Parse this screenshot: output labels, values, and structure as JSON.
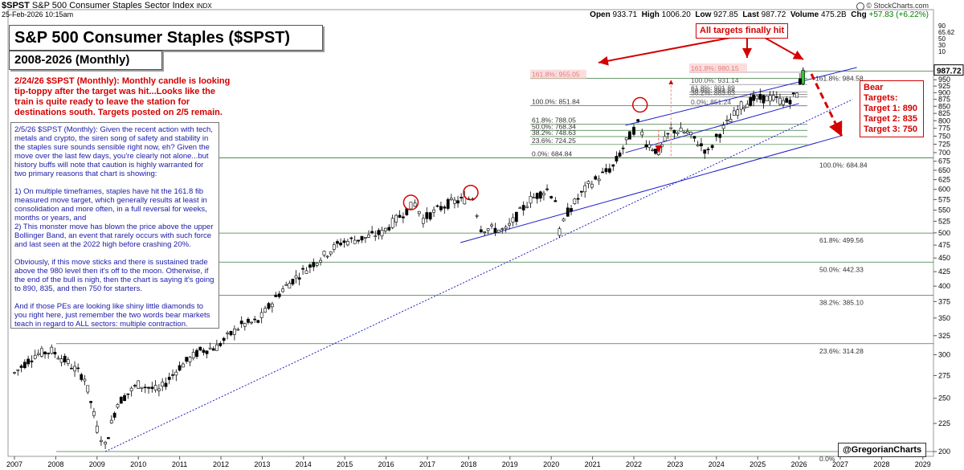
{
  "header": {
    "symbol": "$SPST",
    "name": "S&P 500 Consumer Staples Sector Index",
    "exchange": "INDX",
    "datetime": "25-Feb-2026 10:15am",
    "brand": "© StockCharts.com",
    "open_label": "Open",
    "open": "933.71",
    "high_label": "High",
    "high": "1006.20",
    "low_label": "Low",
    "low": "927.85",
    "last_label": "Last",
    "last": "987.72",
    "volume_label": "Volume",
    "volume": "475.2B",
    "chg_label": "Chg",
    "chg": "+57.83 (+6.22%)",
    "chg_color": "#008000"
  },
  "title": "S&P 500 Consumer Staples ($SPST)",
  "subtitle": "2008-2026 (Monthly)",
  "annotation_red": "2/24/26 $SPST (Monthly): Monthly candle is looking tip-toppy after the target was hit...Looks like the train is quite ready to leave the station for destinations south. Targets posted on 2/5 remain.",
  "annotation_blue": [
    "2/5/26 $SPST (Monthly): Given the recent action with tech, metals and crypto, the siren song of safety and stability in the staples sure sounds sensible right now, eh? Given the move over the last few days, you're clearly not alone...but history buffs will note that caution is highly warranted for two primary reasons that chart is showing:",
    "1) On multiple timeframes, staples have hit the 161.8 fib measured move target, which generally results at least in consolidation and more often, in a full reversal for weeks, months or years, and\n2) This monster move has blown the price above the upper Bollinger Band, an event that rarely occurs with such force and last seen at the 2022 high before crashing 20%.",
    "Obviously, if this move sticks and there is sustained trade above the 980 level then it's off to the moon. Otherwise, if the end of the bull is nigh, then the chart is saying it's going to 890, 835, and then 750 for starters.",
    "And if those PEs are looking like shiny little diamonds to you right here, just remember the two words bear markets teach in regard to ALL sectors: multiple contraction."
  ],
  "targets_hit_label": "All targets finally hit",
  "bear_targets": {
    "title": "Bear Targets:",
    "t1": "Target 1: 890",
    "t2": "Target 2: 835",
    "t3": "Target 3: 750"
  },
  "watermark": "@GregorianCharts",
  "colors": {
    "red": "#d40000",
    "blue": "#1e1ec8",
    "fib": "#3a7a3a",
    "candle": "#000000",
    "last_badge": "#ffffff"
  },
  "chart_data": {
    "type": "candlestick",
    "x_ticks": [
      "2007",
      "2008",
      "2009",
      "2010",
      "2011",
      "2012",
      "2013",
      "2014",
      "2015",
      "2016",
      "2017",
      "2018",
      "2019",
      "2020",
      "2021",
      "2022",
      "2023",
      "2024",
      "2025",
      "2026",
      "2027",
      "2028",
      "2029"
    ],
    "y_ticks": [
      200,
      225,
      250,
      275,
      300,
      325,
      350,
      375,
      400,
      425,
      450,
      475,
      500,
      525,
      550,
      575,
      600,
      625,
      650,
      675,
      700,
      725,
      750,
      775,
      800,
      825,
      850,
      875,
      900,
      925,
      950
    ],
    "y_scale": "log",
    "ylim": [
      200,
      1000
    ],
    "last_value_label": "987.72",
    "indicator_ticks": [
      "90",
      "65.62",
      "50",
      "30",
      "10"
    ],
    "price_path": [
      [
        2007.0,
        278
      ],
      [
        2007.5,
        300
      ],
      [
        2007.9,
        305
      ],
      [
        2008.3,
        290
      ],
      [
        2008.7,
        272
      ],
      [
        2009.0,
        220
      ],
      [
        2009.2,
        205
      ],
      [
        2009.5,
        245
      ],
      [
        2010.0,
        265
      ],
      [
        2010.5,
        258
      ],
      [
        2011.0,
        285
      ],
      [
        2011.5,
        305
      ],
      [
        2011.9,
        310
      ],
      [
        2012.5,
        340
      ],
      [
        2012.9,
        345
      ],
      [
        2013.5,
        395
      ],
      [
        2013.9,
        420
      ],
      [
        2014.5,
        455
      ],
      [
        2014.9,
        480
      ],
      [
        2015.5,
        490
      ],
      [
        2015.9,
        500
      ],
      [
        2016.5,
        550
      ],
      [
        2016.7,
        565
      ],
      [
        2016.9,
        530
      ],
      [
        2017.5,
        565
      ],
      [
        2017.9,
        575
      ],
      [
        2018.1,
        580
      ],
      [
        2018.3,
        510
      ],
      [
        2018.9,
        505
      ],
      [
        2019.5,
        575
      ],
      [
        2019.9,
        600
      ],
      [
        2020.1,
        575
      ],
      [
        2020.2,
        500
      ],
      [
        2020.4,
        545
      ],
      [
        2020.9,
        610
      ],
      [
        2021.5,
        660
      ],
      [
        2021.9,
        750
      ],
      [
        2022.1,
        790
      ],
      [
        2022.3,
        730
      ],
      [
        2022.6,
        700
      ],
      [
        2022.9,
        770
      ],
      [
        2023.3,
        760
      ],
      [
        2023.8,
        700
      ],
      [
        2024.0,
        745
      ],
      [
        2024.6,
        850
      ],
      [
        2024.9,
        875
      ],
      [
        2025.3,
        880
      ],
      [
        2025.7,
        865
      ],
      [
        2025.95,
        895
      ],
      [
        2026.1,
        988
      ]
    ],
    "fib_levels_long": [
      {
        "label": "100.0%: 684.84",
        "value": 684.84
      },
      {
        "label": "61.8%: 499.56",
        "value": 499.56
      },
      {
        "label": "50.0%: 442.33",
        "value": 442.33
      },
      {
        "label": "38.2%: 385.10",
        "value": 385.1
      },
      {
        "label": "23.6%: 314.28",
        "value": 314.28
      },
      {
        "label": "161.8%: 984.58",
        "value": 984.58
      },
      {
        "label": "0.0%",
        "value": 200
      }
    ],
    "fib_levels_2022": [
      {
        "label": "161.8%: 955.05",
        "value": 955.05
      },
      {
        "label": "100.0%: 851.84",
        "value": 851.84
      },
      {
        "label": "61.8%: 788.05",
        "value": 788.05
      },
      {
        "label": "50.0%: 768.34",
        "value": 768.34
      },
      {
        "label": "38.2%: 748.63",
        "value": 748.63
      },
      {
        "label": "23.6%: 724.25",
        "value": 724.25
      },
      {
        "label": "0.0%: 684.84",
        "value": 684.84
      }
    ],
    "fib_levels_2023": [
      {
        "label": "161.8%: 980.15",
        "value": 980.15
      },
      {
        "label": "100.0%: 931.14",
        "value": 931.14
      },
      {
        "label": "61.8%: 901.89",
        "value": 901.89
      },
      {
        "label": "50.0%: 892.86",
        "value": 892.86
      },
      {
        "label": "38.2%: 883.63",
        "value": 883.63
      },
      {
        "label": "0.0%: 851.24",
        "value": 851.24
      }
    ]
  }
}
